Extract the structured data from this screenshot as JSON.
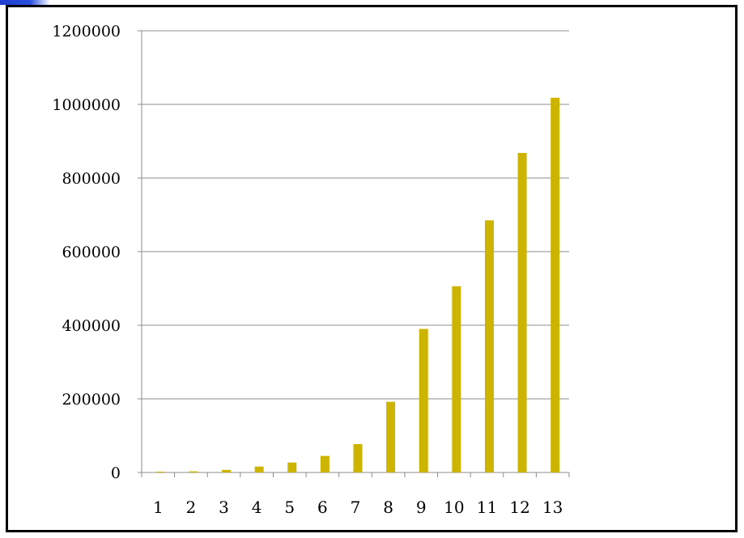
{
  "chart_data": {
    "type": "bar",
    "title": "",
    "xlabel": "",
    "ylabel": "",
    "categories": [
      "1",
      "2",
      "3",
      "4",
      "5",
      "6",
      "7",
      "8",
      "9",
      "10",
      "11",
      "12",
      "13"
    ],
    "series": [
      {
        "color": "#ccb400",
        "values": [
          1500,
          3000,
          7000,
          16000,
          27000,
          45000,
          77000,
          192000,
          390000,
          506000,
          685000,
          868000,
          1018000
        ]
      }
    ],
    "yticks": [
      "0",
      "200000",
      "400000",
      "600000",
      "800000",
      "1000000",
      "1200000"
    ],
    "ylim": [
      0,
      1200000
    ],
    "grid": true,
    "legend": "none"
  }
}
